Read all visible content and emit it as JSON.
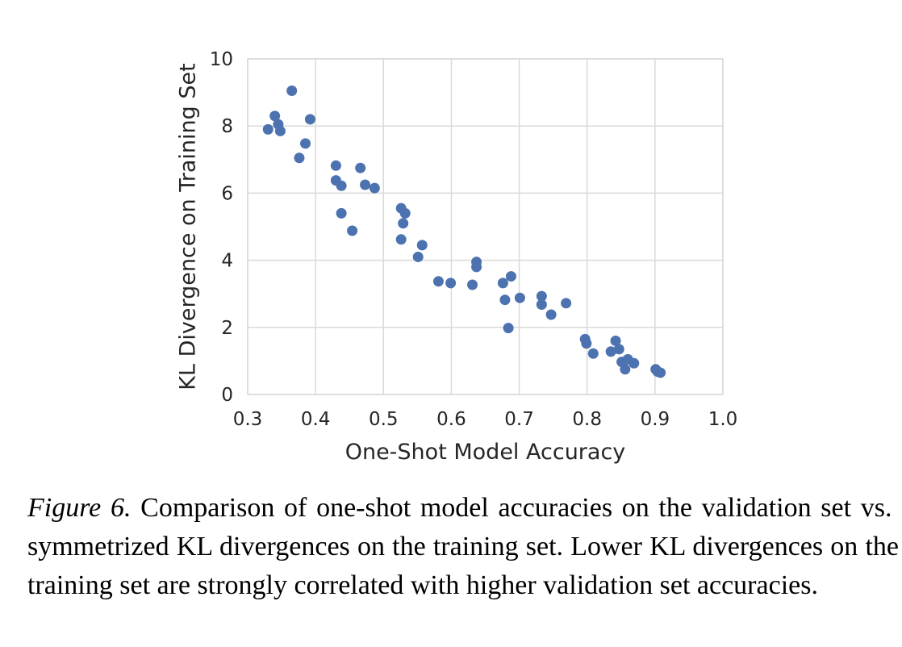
{
  "chart_data": {
    "type": "scatter",
    "xlabel": "One-Shot Model Accuracy",
    "ylabel": "KL Divergence on Training Set",
    "xlim": [
      0.3,
      1.0
    ],
    "ylim": [
      0,
      10
    ],
    "xticks": [
      "0.3",
      "0.4",
      "0.5",
      "0.6",
      "0.7",
      "0.8",
      "0.9",
      "1.0"
    ],
    "yticks": [
      "0",
      "2",
      "4",
      "6",
      "8",
      "10"
    ],
    "grid": true,
    "marker_color": "#4c72b0",
    "points": [
      [
        0.365,
        9.05
      ],
      [
        0.34,
        8.3
      ],
      [
        0.345,
        8.05
      ],
      [
        0.392,
        8.2
      ],
      [
        0.33,
        7.9
      ],
      [
        0.348,
        7.85
      ],
      [
        0.385,
        7.48
      ],
      [
        0.376,
        7.05
      ],
      [
        0.43,
        6.82
      ],
      [
        0.466,
        6.75
      ],
      [
        0.43,
        6.38
      ],
      [
        0.438,
        6.22
      ],
      [
        0.473,
        6.25
      ],
      [
        0.487,
        6.15
      ],
      [
        0.526,
        5.55
      ],
      [
        0.532,
        5.4
      ],
      [
        0.438,
        5.4
      ],
      [
        0.529,
        5.1
      ],
      [
        0.454,
        4.88
      ],
      [
        0.526,
        4.62
      ],
      [
        0.557,
        4.45
      ],
      [
        0.551,
        4.1
      ],
      [
        0.637,
        3.95
      ],
      [
        0.637,
        3.8
      ],
      [
        0.688,
        3.52
      ],
      [
        0.581,
        3.37
      ],
      [
        0.599,
        3.32
      ],
      [
        0.676,
        3.32
      ],
      [
        0.631,
        3.27
      ],
      [
        0.733,
        2.93
      ],
      [
        0.701,
        2.88
      ],
      [
        0.679,
        2.82
      ],
      [
        0.733,
        2.68
      ],
      [
        0.769,
        2.72
      ],
      [
        0.747,
        2.38
      ],
      [
        0.684,
        1.98
      ],
      [
        0.797,
        1.65
      ],
      [
        0.799,
        1.52
      ],
      [
        0.842,
        1.6
      ],
      [
        0.847,
        1.35
      ],
      [
        0.835,
        1.28
      ],
      [
        0.809,
        1.22
      ],
      [
        0.86,
        1.05
      ],
      [
        0.851,
        0.97
      ],
      [
        0.869,
        0.93
      ],
      [
        0.856,
        0.75
      ],
      [
        0.901,
        0.75
      ],
      [
        0.904,
        0.68
      ],
      [
        0.908,
        0.65
      ]
    ]
  },
  "caption": {
    "lead": "Figure 6.",
    "text": " Comparison of one-shot model accuracies on the validation set vs.  symmetrized KL divergences on the training set. Lower KL divergences on the training set are strongly correlated with higher validation set accuracies."
  }
}
